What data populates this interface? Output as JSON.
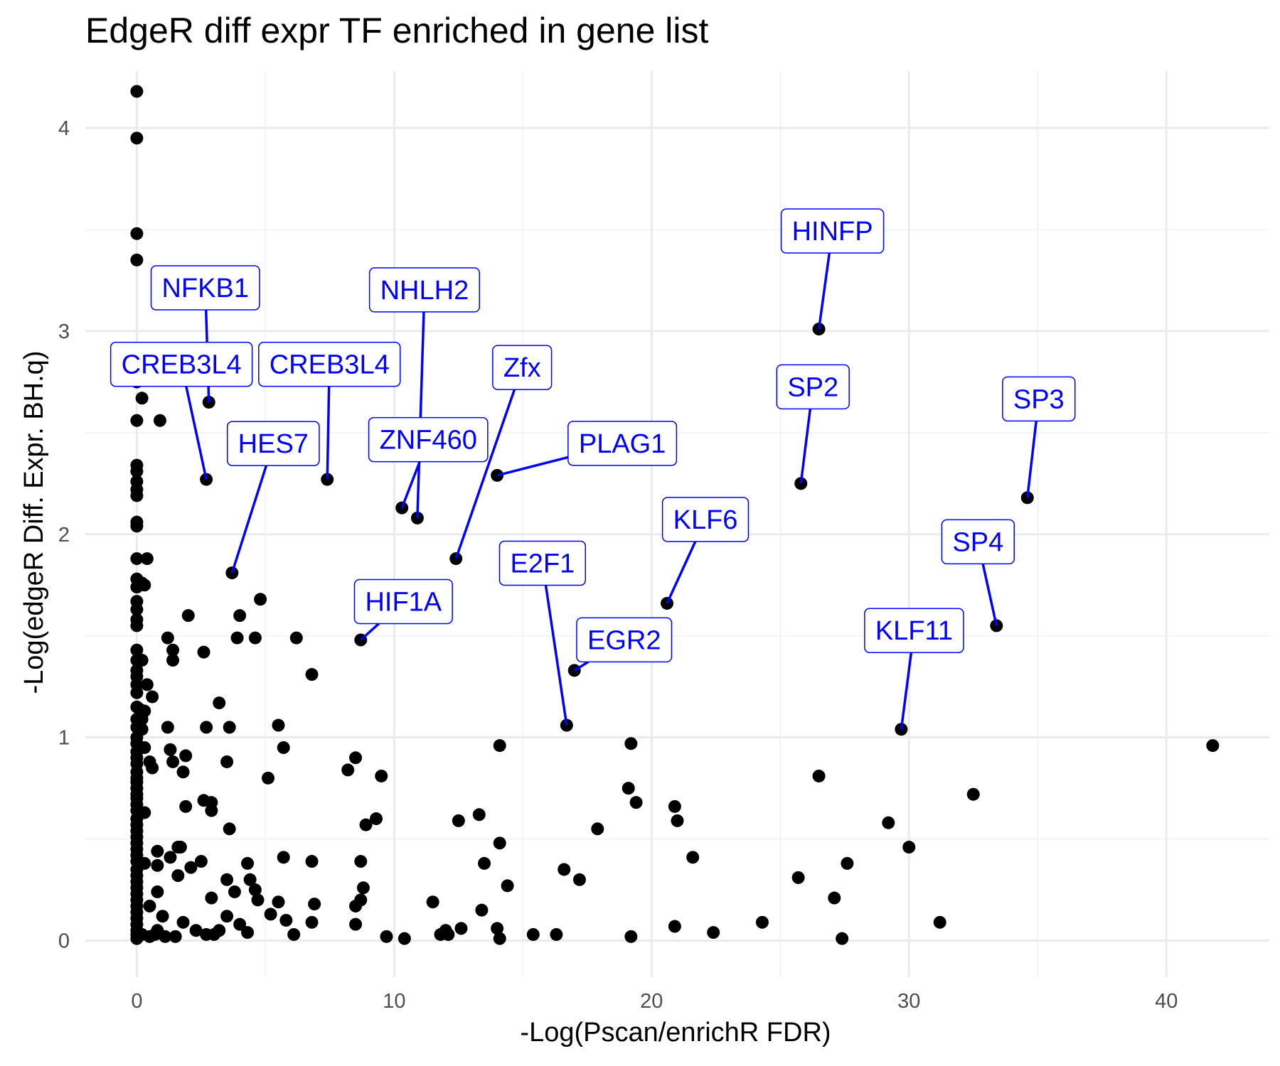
{
  "chart_data": {
    "type": "scatter",
    "title": "EdgeR diff expr TF enriched in gene list",
    "xlabel": "-Log(Pscan/enrichR FDR)",
    "ylabel": "-Log(edgeR Diff. Expr. BH.q)",
    "xlim": [
      -2,
      44
    ],
    "ylim": [
      -0.18,
      4.28
    ],
    "xticks": [
      0,
      10,
      20,
      30,
      40
    ],
    "xtick_labels": [
      "0",
      "10",
      "20",
      "30",
      "40"
    ],
    "yticks": [
      0,
      1,
      2,
      3,
      4
    ],
    "ytick_labels": [
      "0",
      "1",
      "2",
      "3",
      "4"
    ],
    "grid": true,
    "point_color": "#000000",
    "label_color": "#0000ff",
    "labeled_points": [
      {
        "name": "HINFP",
        "x": 26.5,
        "y": 3.01
      },
      {
        "name": "NFKB1",
        "x": 2.8,
        "y": 2.65
      },
      {
        "name": "NHLH2",
        "x": 10.9,
        "y": 2.08
      },
      {
        "name": "CREB3L4",
        "x": 2.7,
        "y": 2.27
      },
      {
        "name": "CREB3L4",
        "x": 7.4,
        "y": 2.27
      },
      {
        "name": "Zfx",
        "x": 12.4,
        "y": 1.88
      },
      {
        "name": "SP2",
        "x": 25.8,
        "y": 2.25
      },
      {
        "name": "SP3",
        "x": 34.6,
        "y": 2.18
      },
      {
        "name": "HES7",
        "x": 3.7,
        "y": 1.81
      },
      {
        "name": "ZNF460",
        "x": 10.3,
        "y": 2.13
      },
      {
        "name": "PLAG1",
        "x": 14,
        "y": 2.29
      },
      {
        "name": "KLF6",
        "x": 20.6,
        "y": 1.66
      },
      {
        "name": "SP4",
        "x": 33.4,
        "y": 1.55
      },
      {
        "name": "HIF1A",
        "x": 8.7,
        "y": 1.48
      },
      {
        "name": "E2F1",
        "x": 16.7,
        "y": 1.06
      },
      {
        "name": "EGR2",
        "x": 17,
        "y": 1.33
      },
      {
        "name": "KLF11",
        "x": 29.7,
        "y": 1.04
      }
    ],
    "points": [
      [
        0,
        4.18
      ],
      [
        0,
        3.95
      ],
      [
        0,
        3.48
      ],
      [
        0,
        3.35
      ],
      [
        0,
        2.75
      ],
      [
        0.2,
        2.67
      ],
      [
        0,
        2.56
      ],
      [
        0.9,
        2.56
      ],
      [
        0,
        2.34
      ],
      [
        0,
        2.31
      ],
      [
        0,
        2.26
      ],
      [
        0,
        2.22
      ],
      [
        0,
        2.19
      ],
      [
        0,
        2.06
      ],
      [
        0,
        2.04
      ],
      [
        0,
        1.88
      ],
      [
        0.4,
        1.88
      ],
      [
        0,
        1.78
      ],
      [
        0.2,
        1.76
      ],
      [
        0,
        1.74
      ],
      [
        0.3,
        1.75
      ],
      [
        0,
        1.67
      ],
      [
        0,
        1.63
      ],
      [
        0,
        1.58
      ],
      [
        0,
        1.55
      ],
      [
        0,
        1.43
      ],
      [
        0,
        1.38
      ],
      [
        0.2,
        1.38
      ],
      [
        0,
        1.33
      ],
      [
        0,
        1.3
      ],
      [
        0,
        1.26
      ],
      [
        0.4,
        1.26
      ],
      [
        0,
        1.22
      ],
      [
        0.6,
        1.2
      ],
      [
        0,
        1.15
      ],
      [
        0.1,
        1.14
      ],
      [
        0.3,
        1.13
      ],
      [
        0,
        1.09
      ],
      [
        0.2,
        1.09
      ],
      [
        0,
        1.05
      ],
      [
        0.2,
        1.04
      ],
      [
        0,
        1.0
      ],
      [
        0,
        0.97
      ],
      [
        0.3,
        0.95
      ],
      [
        0,
        0.93
      ],
      [
        0,
        0.9
      ],
      [
        0.5,
        0.88
      ],
      [
        0,
        0.87
      ],
      [
        0.6,
        0.85
      ],
      [
        0,
        0.83
      ],
      [
        0,
        0.8
      ],
      [
        0,
        0.78
      ],
      [
        0,
        0.75
      ],
      [
        0,
        0.72
      ],
      [
        0,
        0.7
      ],
      [
        0,
        0.67
      ],
      [
        0,
        0.64
      ],
      [
        0.3,
        0.63
      ],
      [
        0,
        0.6
      ],
      [
        0,
        0.57
      ],
      [
        0,
        0.54
      ],
      [
        0,
        0.51
      ],
      [
        0,
        0.48
      ],
      [
        0,
        0.45
      ],
      [
        0,
        0.42
      ],
      [
        0,
        0.39
      ],
      [
        0.3,
        0.38
      ],
      [
        0,
        0.35
      ],
      [
        0,
        0.32
      ],
      [
        0,
        0.29
      ],
      [
        0,
        0.26
      ],
      [
        0,
        0.23
      ],
      [
        0,
        0.2
      ],
      [
        0,
        0.17
      ],
      [
        0.5,
        0.17
      ],
      [
        0,
        0.14
      ],
      [
        0,
        0.11
      ],
      [
        0,
        0.08
      ],
      [
        0,
        0.05
      ],
      [
        0,
        0.03
      ],
      [
        0,
        0.01
      ],
      [
        0.2,
        0.03
      ],
      [
        0.5,
        0.02
      ],
      [
        0.7,
        0.03
      ],
      [
        0.8,
        0.05
      ],
      [
        0.8,
        0.44
      ],
      [
        0.8,
        0.37
      ],
      [
        0.8,
        0.24
      ],
      [
        1,
        0.12
      ],
      [
        1.1,
        0.02
      ],
      [
        1.2,
        1.49
      ],
      [
        1.2,
        1.05
      ],
      [
        1.3,
        0.94
      ],
      [
        1.3,
        0.41
      ],
      [
        1.4,
        1.43
      ],
      [
        1.4,
        1.38
      ],
      [
        1.4,
        0.88
      ],
      [
        1.5,
        0.02
      ],
      [
        1.6,
        0.46
      ],
      [
        1.6,
        0.32
      ],
      [
        1.7,
        0.46
      ],
      [
        1.8,
        0.83
      ],
      [
        1.8,
        0.09
      ],
      [
        1.9,
        0.66
      ],
      [
        1.9,
        0.91
      ],
      [
        2,
        1.6
      ],
      [
        2.1,
        0.36
      ],
      [
        2.3,
        0.05
      ],
      [
        2.5,
        0.39
      ],
      [
        2.6,
        1.42
      ],
      [
        2.6,
        0.69
      ],
      [
        2.7,
        1.05
      ],
      [
        2.7,
        0.03
      ],
      [
        2.9,
        0.21
      ],
      [
        2.9,
        0.68
      ],
      [
        2.9,
        0.64
      ],
      [
        3,
        0.03
      ],
      [
        3.2,
        1.17
      ],
      [
        3.2,
        0.05
      ],
      [
        3.5,
        0.88
      ],
      [
        3.5,
        0.3
      ],
      [
        3.5,
        0.12
      ],
      [
        3.6,
        1.05
      ],
      [
        3.6,
        0.55
      ],
      [
        3.8,
        0.24
      ],
      [
        3.9,
        1.49
      ],
      [
        4,
        0.08
      ],
      [
        4,
        1.6
      ],
      [
        4.3,
        0.38
      ],
      [
        4.3,
        0.04
      ],
      [
        4.4,
        0.3
      ],
      [
        4.6,
        1.49
      ],
      [
        4.6,
        0.25
      ],
      [
        4.7,
        0.2
      ],
      [
        4.8,
        1.68
      ],
      [
        5.1,
        0.8
      ],
      [
        5.2,
        0.13
      ],
      [
        5.5,
        1.06
      ],
      [
        5.5,
        0.19
      ],
      [
        5.7,
        0.95
      ],
      [
        5.7,
        0.41
      ],
      [
        5.8,
        0.1
      ],
      [
        6.1,
        0.03
      ],
      [
        6.2,
        1.49
      ],
      [
        6.8,
        1.31
      ],
      [
        6.8,
        0.39
      ],
      [
        6.8,
        0.09
      ],
      [
        6.9,
        0.18
      ],
      [
        8.2,
        0.84
      ],
      [
        8.5,
        0.9
      ],
      [
        8.5,
        0.08
      ],
      [
        8.5,
        0.17
      ],
      [
        8.7,
        0.2
      ],
      [
        8.7,
        0.39
      ],
      [
        8.8,
        0.26
      ],
      [
        8.9,
        0.57
      ],
      [
        9.3,
        0.6
      ],
      [
        9.5,
        0.81
      ],
      [
        9.7,
        0.02
      ],
      [
        10.4,
        0.01
      ],
      [
        11.5,
        0.19
      ],
      [
        11.8,
        0.03
      ],
      [
        12,
        0.05
      ],
      [
        12.1,
        0.03
      ],
      [
        12.5,
        0.59
      ],
      [
        12.6,
        0.06
      ],
      [
        13.3,
        0.62
      ],
      [
        13.4,
        0.15
      ],
      [
        13.5,
        0.38
      ],
      [
        14,
        0.06
      ],
      [
        14.1,
        0.48
      ],
      [
        14.1,
        0.01
      ],
      [
        14.1,
        0.96
      ],
      [
        14.4,
        0.27
      ],
      [
        15.4,
        0.03
      ],
      [
        16.3,
        0.03
      ],
      [
        16.6,
        0.35
      ],
      [
        17.2,
        0.3
      ],
      [
        17.9,
        0.55
      ],
      [
        19.1,
        0.75
      ],
      [
        19.2,
        0.02
      ],
      [
        19.2,
        0.97
      ],
      [
        19.4,
        0.68
      ],
      [
        20.9,
        0.66
      ],
      [
        20.9,
        0.07
      ],
      [
        21,
        0.59
      ],
      [
        21.6,
        0.41
      ],
      [
        22.4,
        0.04
      ],
      [
        24.3,
        0.09
      ],
      [
        25.7,
        0.31
      ],
      [
        26.5,
        0.81
      ],
      [
        27.1,
        0.21
      ],
      [
        27.4,
        0.01
      ],
      [
        27.6,
        0.38
      ],
      [
        29.2,
        0.58
      ],
      [
        30,
        0.46
      ],
      [
        31.2,
        0.09
      ],
      [
        32.5,
        0.72
      ],
      [
        41.8,
        0.96
      ]
    ]
  }
}
